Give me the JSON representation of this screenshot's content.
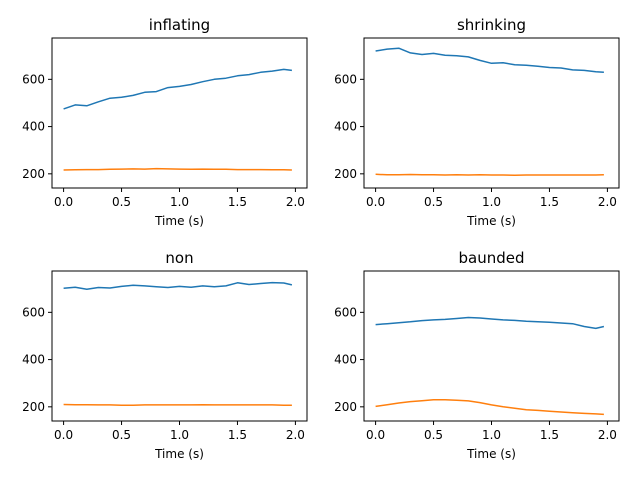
{
  "chart_data": [
    {
      "type": "line",
      "title": "inflating",
      "xlabel": "Time (s)",
      "ylabel": "",
      "xlim": [
        -0.1,
        2.1
      ],
      "ylim": [
        140,
        775
      ],
      "xticks": [
        0.0,
        0.5,
        1.0,
        1.5,
        2.0
      ],
      "xtick_labels": [
        "0.0",
        "0.5",
        "1.0",
        "1.5",
        "2.0"
      ],
      "yticks": [
        200,
        400,
        600
      ],
      "ytick_labels": [
        "200",
        "400",
        "600"
      ],
      "x": [
        0.0,
        0.1,
        0.2,
        0.3,
        0.4,
        0.5,
        0.6,
        0.7,
        0.8,
        0.9,
        1.0,
        1.1,
        1.2,
        1.3,
        1.4,
        1.5,
        1.6,
        1.7,
        1.8,
        1.9,
        1.97
      ],
      "series": [
        {
          "color": "#1f77b4",
          "values": [
            475,
            492,
            488,
            505,
            520,
            524,
            532,
            545,
            548,
            565,
            570,
            578,
            590,
            600,
            605,
            615,
            620,
            630,
            635,
            642,
            638
          ]
        },
        {
          "color": "#ff7f0e",
          "values": [
            216,
            217,
            218,
            218,
            219,
            220,
            221,
            220,
            222,
            221,
            220,
            219,
            220,
            219,
            219,
            218,
            218,
            218,
            217,
            217,
            216
          ]
        }
      ]
    },
    {
      "type": "line",
      "title": "shrinking",
      "xlabel": "Time (s)",
      "ylabel": "",
      "xlim": [
        -0.1,
        2.1
      ],
      "ylim": [
        140,
        775
      ],
      "xticks": [
        0.0,
        0.5,
        1.0,
        1.5,
        2.0
      ],
      "xtick_labels": [
        "0.0",
        "0.5",
        "1.0",
        "1.5",
        "2.0"
      ],
      "yticks": [
        200,
        400,
        600
      ],
      "ytick_labels": [
        "200",
        "400",
        "600"
      ],
      "x": [
        0.0,
        0.1,
        0.2,
        0.3,
        0.4,
        0.5,
        0.6,
        0.7,
        0.8,
        0.9,
        1.0,
        1.1,
        1.2,
        1.3,
        1.4,
        1.5,
        1.6,
        1.7,
        1.8,
        1.9,
        1.97
      ],
      "series": [
        {
          "color": "#1f77b4",
          "values": [
            720,
            728,
            732,
            712,
            705,
            710,
            702,
            700,
            695,
            680,
            668,
            670,
            662,
            660,
            655,
            650,
            648,
            640,
            638,
            632,
            630
          ]
        },
        {
          "color": "#ff7f0e",
          "values": [
            198,
            196,
            196,
            197,
            196,
            196,
            195,
            196,
            195,
            196,
            195,
            195,
            194,
            195,
            195,
            195,
            195,
            195,
            195,
            195,
            196
          ]
        }
      ]
    },
    {
      "type": "line",
      "title": "non",
      "xlabel": "Time (s)",
      "ylabel": "",
      "xlim": [
        -0.1,
        2.1
      ],
      "ylim": [
        140,
        775
      ],
      "xticks": [
        0.0,
        0.5,
        1.0,
        1.5,
        2.0
      ],
      "xtick_labels": [
        "0.0",
        "0.5",
        "1.0",
        "1.5",
        "2.0"
      ],
      "yticks": [
        200,
        400,
        600
      ],
      "ytick_labels": [
        "200",
        "400",
        "600"
      ],
      "x": [
        0.0,
        0.1,
        0.2,
        0.3,
        0.4,
        0.5,
        0.6,
        0.7,
        0.8,
        0.9,
        1.0,
        1.1,
        1.2,
        1.3,
        1.4,
        1.5,
        1.6,
        1.7,
        1.8,
        1.9,
        1.97
      ],
      "series": [
        {
          "color": "#1f77b4",
          "values": [
            702,
            706,
            698,
            705,
            703,
            710,
            715,
            712,
            708,
            705,
            710,
            706,
            712,
            708,
            712,
            725,
            718,
            722,
            726,
            724,
            716
          ]
        },
        {
          "color": "#ff7f0e",
          "values": [
            210,
            209,
            209,
            208,
            208,
            207,
            207,
            208,
            208,
            208,
            208,
            208,
            209,
            208,
            208,
            208,
            208,
            208,
            208,
            207,
            207
          ]
        }
      ]
    },
    {
      "type": "line",
      "title": "baunded",
      "xlabel": "Time (s)",
      "ylabel": "",
      "xlim": [
        -0.1,
        2.1
      ],
      "ylim": [
        140,
        775
      ],
      "xticks": [
        0.0,
        0.5,
        1.0,
        1.5,
        2.0
      ],
      "xtick_labels": [
        "0.0",
        "0.5",
        "1.0",
        "1.5",
        "2.0"
      ],
      "yticks": [
        200,
        400,
        600
      ],
      "ytick_labels": [
        "200",
        "400",
        "600"
      ],
      "x": [
        0.0,
        0.1,
        0.2,
        0.3,
        0.4,
        0.5,
        0.6,
        0.7,
        0.8,
        0.9,
        1.0,
        1.1,
        1.2,
        1.3,
        1.4,
        1.5,
        1.6,
        1.7,
        1.8,
        1.9,
        1.97
      ],
      "series": [
        {
          "color": "#1f77b4",
          "values": [
            548,
            552,
            556,
            560,
            565,
            568,
            570,
            574,
            578,
            576,
            572,
            568,
            566,
            562,
            560,
            558,
            555,
            552,
            540,
            532,
            540
          ]
        },
        {
          "color": "#ff7f0e",
          "values": [
            202,
            209,
            216,
            222,
            226,
            230,
            230,
            228,
            225,
            218,
            208,
            200,
            194,
            188,
            185,
            181,
            178,
            175,
            172,
            170,
            168
          ]
        }
      ]
    }
  ]
}
